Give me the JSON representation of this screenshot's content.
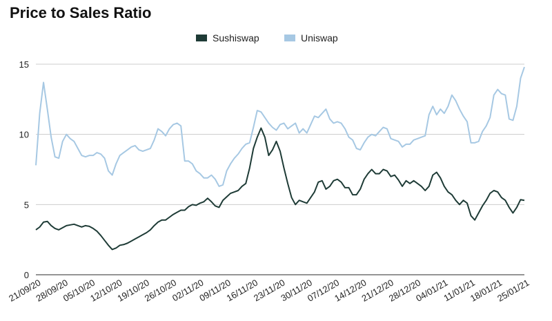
{
  "chart_data": {
    "type": "line",
    "title": "Price to Sales Ratio",
    "xlabel": "",
    "ylabel": "",
    "ylim": [
      0,
      15
    ],
    "yticks": [
      "0",
      "5",
      "10",
      "15"
    ],
    "grid": true,
    "legend_position": "top-center",
    "x_tick_labels": [
      "21/09/20",
      "28/09/20",
      "05/10/20",
      "12/10/20",
      "19/10/20",
      "26/10/20",
      "02/11/20",
      "09/11/20",
      "16/11/20",
      "23/11/20",
      "30/11/20",
      "07/12/20",
      "14/12/20",
      "21/12/20",
      "28/12/20",
      "04/01/21",
      "11/01/21",
      "18/01/21",
      "25/01/21"
    ],
    "x_start": "21/09/20",
    "x_end": "25/01/21",
    "series": [
      {
        "name": "Sushiswap",
        "color": "#1e3b36",
        "values": [
          3.2,
          3.4,
          3.75,
          3.8,
          3.5,
          3.3,
          3.2,
          3.35,
          3.5,
          3.55,
          3.6,
          3.5,
          3.4,
          3.5,
          3.45,
          3.3,
          3.1,
          2.8,
          2.45,
          2.1,
          1.8,
          1.9,
          2.1,
          2.15,
          2.25,
          2.4,
          2.55,
          2.7,
          2.85,
          3.0,
          3.2,
          3.5,
          3.75,
          3.9,
          3.9,
          4.1,
          4.3,
          4.45,
          4.6,
          4.6,
          4.85,
          5.0,
          4.95,
          5.1,
          5.2,
          5.45,
          5.2,
          4.9,
          4.8,
          5.3,
          5.55,
          5.8,
          5.9,
          6.0,
          6.3,
          6.5,
          7.6,
          9.0,
          9.8,
          10.45,
          9.8,
          8.5,
          8.9,
          9.5,
          8.8,
          7.6,
          6.5,
          5.5,
          5.0,
          5.3,
          5.2,
          5.1,
          5.5,
          5.9,
          6.6,
          6.7,
          6.1,
          6.3,
          6.7,
          6.8,
          6.6,
          6.2,
          6.2,
          5.7,
          5.7,
          6.1,
          6.8,
          7.2,
          7.5,
          7.2,
          7.2,
          7.5,
          7.4,
          7.0,
          7.1,
          6.75,
          6.3,
          6.7,
          6.5,
          6.7,
          6.5,
          6.3,
          6.0,
          6.3,
          7.1,
          7.3,
          6.9,
          6.3,
          5.9,
          5.7,
          5.3,
          5.0,
          5.3,
          5.1,
          4.2,
          3.9,
          4.4,
          4.9,
          5.3,
          5.8,
          6.0,
          5.9,
          5.5,
          5.3,
          4.8,
          4.4,
          4.8,
          5.35,
          5.3
        ]
      },
      {
        "name": "Uniswap",
        "color": "#a6c8e3",
        "values": [
          7.8,
          11.5,
          13.7,
          11.8,
          9.8,
          8.4,
          8.3,
          9.5,
          10.0,
          9.7,
          9.5,
          9.0,
          8.5,
          8.4,
          8.5,
          8.5,
          8.7,
          8.6,
          8.3,
          7.4,
          7.1,
          7.9,
          8.5,
          8.7,
          8.9,
          9.1,
          9.2,
          8.9,
          8.8,
          8.9,
          9.0,
          9.6,
          10.4,
          10.2,
          9.9,
          10.4,
          10.7,
          10.8,
          10.6,
          8.1,
          8.1,
          7.9,
          7.4,
          7.2,
          6.9,
          6.9,
          7.1,
          6.8,
          6.3,
          6.4,
          7.4,
          7.9,
          8.3,
          8.6,
          9.0,
          9.3,
          9.4,
          10.5,
          11.7,
          11.6,
          11.2,
          10.8,
          10.5,
          10.3,
          10.7,
          10.8,
          10.4,
          10.6,
          10.8,
          10.1,
          10.4,
          10.1,
          10.7,
          11.3,
          11.2,
          11.5,
          11.8,
          11.1,
          10.8,
          10.9,
          10.8,
          10.4,
          9.8,
          9.6,
          9.0,
          8.9,
          9.4,
          9.8,
          10.0,
          9.9,
          10.2,
          10.5,
          10.4,
          9.7,
          9.6,
          9.5,
          9.1,
          9.3,
          9.3,
          9.6,
          9.7,
          9.8,
          9.9,
          11.4,
          12.0,
          11.4,
          11.8,
          11.5,
          12.0,
          12.8,
          12.4,
          11.8,
          11.3,
          10.9,
          9.4,
          9.4,
          9.5,
          10.2,
          10.6,
          11.2,
          12.8,
          13.2,
          12.9,
          12.8,
          11.1,
          11.0,
          12.0,
          14.0,
          14.8
        ]
      }
    ]
  }
}
